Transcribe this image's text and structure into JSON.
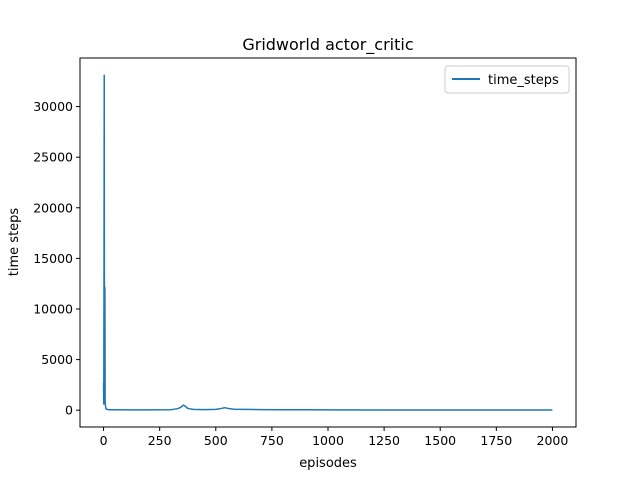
{
  "chart_data": {
    "type": "line",
    "title": "Gridworld actor_critic",
    "xlabel": "episodes",
    "ylabel": "time steps",
    "xlim": [
      -105,
      2105
    ],
    "ylim": [
      -1660,
      34800
    ],
    "xticks": [
      0,
      250,
      500,
      750,
      1000,
      1250,
      1500,
      1750,
      2000
    ],
    "yticks": [
      0,
      5000,
      10000,
      15000,
      20000,
      25000,
      30000
    ],
    "grid": false,
    "legend": {
      "placement": "top-right",
      "entries": [
        "time_steps"
      ]
    },
    "series": [
      {
        "name": "time_steps",
        "color": "#1f77b4",
        "x": [
          0,
          1,
          2,
          3,
          4,
          5,
          6,
          7,
          8,
          9,
          10,
          11,
          12,
          13,
          14,
          15,
          18,
          22,
          30,
          50,
          100,
          200,
          300,
          330,
          345,
          355,
          360,
          365,
          370,
          380,
          400,
          450,
          500,
          520,
          540,
          550,
          560,
          580,
          620,
          700,
          800,
          900,
          1000,
          1250,
          1500,
          1750,
          2000
        ],
        "y": [
          2700,
          600,
          13000,
          33100,
          900,
          12200,
          12000,
          800,
          500,
          400,
          200,
          150,
          120,
          100,
          90,
          80,
          70,
          60,
          50,
          40,
          30,
          30,
          50,
          150,
          300,
          500,
          450,
          400,
          250,
          150,
          80,
          60,
          80,
          150,
          250,
          200,
          150,
          100,
          80,
          60,
          50,
          40,
          30,
          25,
          25,
          25,
          25
        ]
      }
    ]
  }
}
